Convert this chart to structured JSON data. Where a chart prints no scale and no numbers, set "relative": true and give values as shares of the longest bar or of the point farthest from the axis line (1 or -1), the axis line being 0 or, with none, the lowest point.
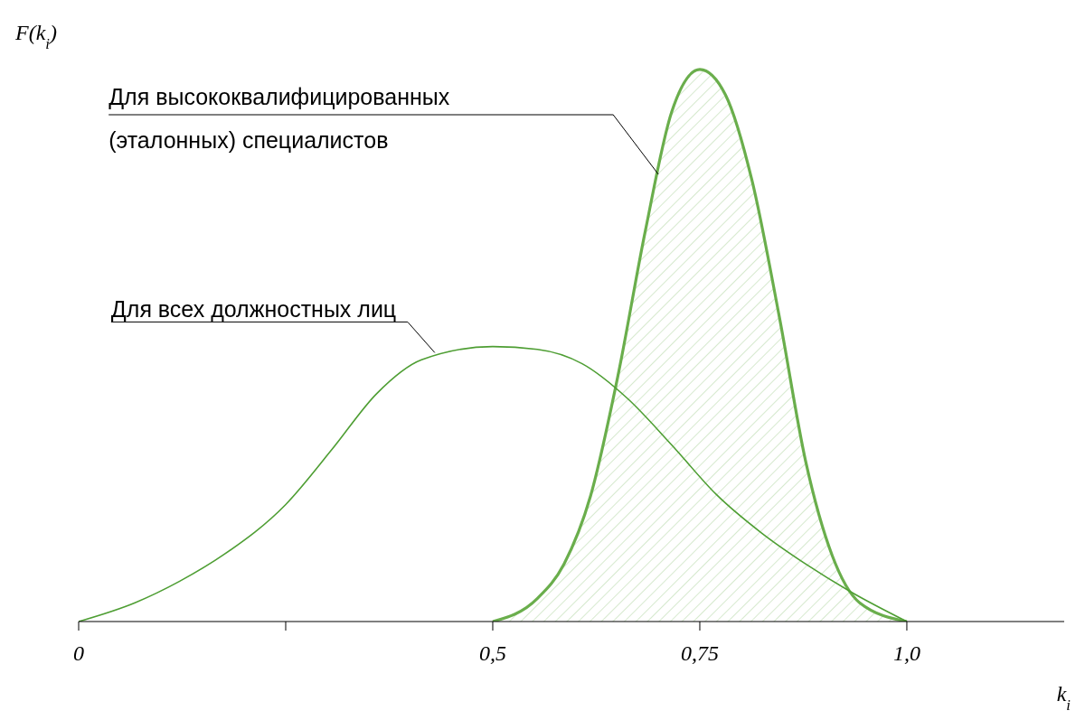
{
  "chart_data": {
    "type": "line",
    "relative": true,
    "xlabel": "k$_{i}$",
    "ylabel": "F(k$_{i}$)",
    "xlim": [
      0,
      1.19
    ],
    "xticks": [
      0,
      {
        "value": 0.25,
        "label": null
      },
      {
        "value": 0.5,
        "label": "0,5"
      },
      {
        "value": 0.75,
        "label": "0,75"
      },
      {
        "value": 1.0,
        "label": "1,0"
      }
    ],
    "grid": false,
    "legend": false,
    "series": [
      {
        "color": "#4e9e33",
        "x": [
          0,
          0.068,
          0.122,
          0.176,
          0.25,
          0.306,
          0.36,
          0.414,
          0.5,
          0.554,
          0.608,
          0.662,
          0.716,
          0.77,
          0.824,
          0.878,
          0.932,
          1.0
        ],
        "values": [
          0,
          0.034,
          0.073,
          0.122,
          0.212,
          0.312,
          0.413,
          0.474,
          0.498,
          0.493,
          0.467,
          0.405,
          0.32,
          0.23,
          0.161,
          0.104,
          0.054,
          0
        ]
      },
      {
        "type": "area",
        "color": "#6aae4c",
        "x": [
          0.5,
          0.554,
          0.586,
          0.618,
          0.651,
          0.684,
          0.716,
          0.75,
          0.781,
          0.813,
          0.846,
          0.878,
          0.91,
          0.943,
          1.0
        ],
        "values": [
          0,
          0.042,
          0.104,
          0.227,
          0.444,
          0.706,
          0.923,
          1,
          0.954,
          0.799,
          0.552,
          0.289,
          0.119,
          0.034,
          0
        ]
      }
    ],
    "annotations": [
      {
        "text": "Для высококвалифицированных (эталонных) специалистов",
        "x": 0.7,
        "y": 0.81
      },
      {
        "text": "Для всех должностных лиц",
        "x": 0.43,
        "y": 0.487
      }
    ]
  }
}
